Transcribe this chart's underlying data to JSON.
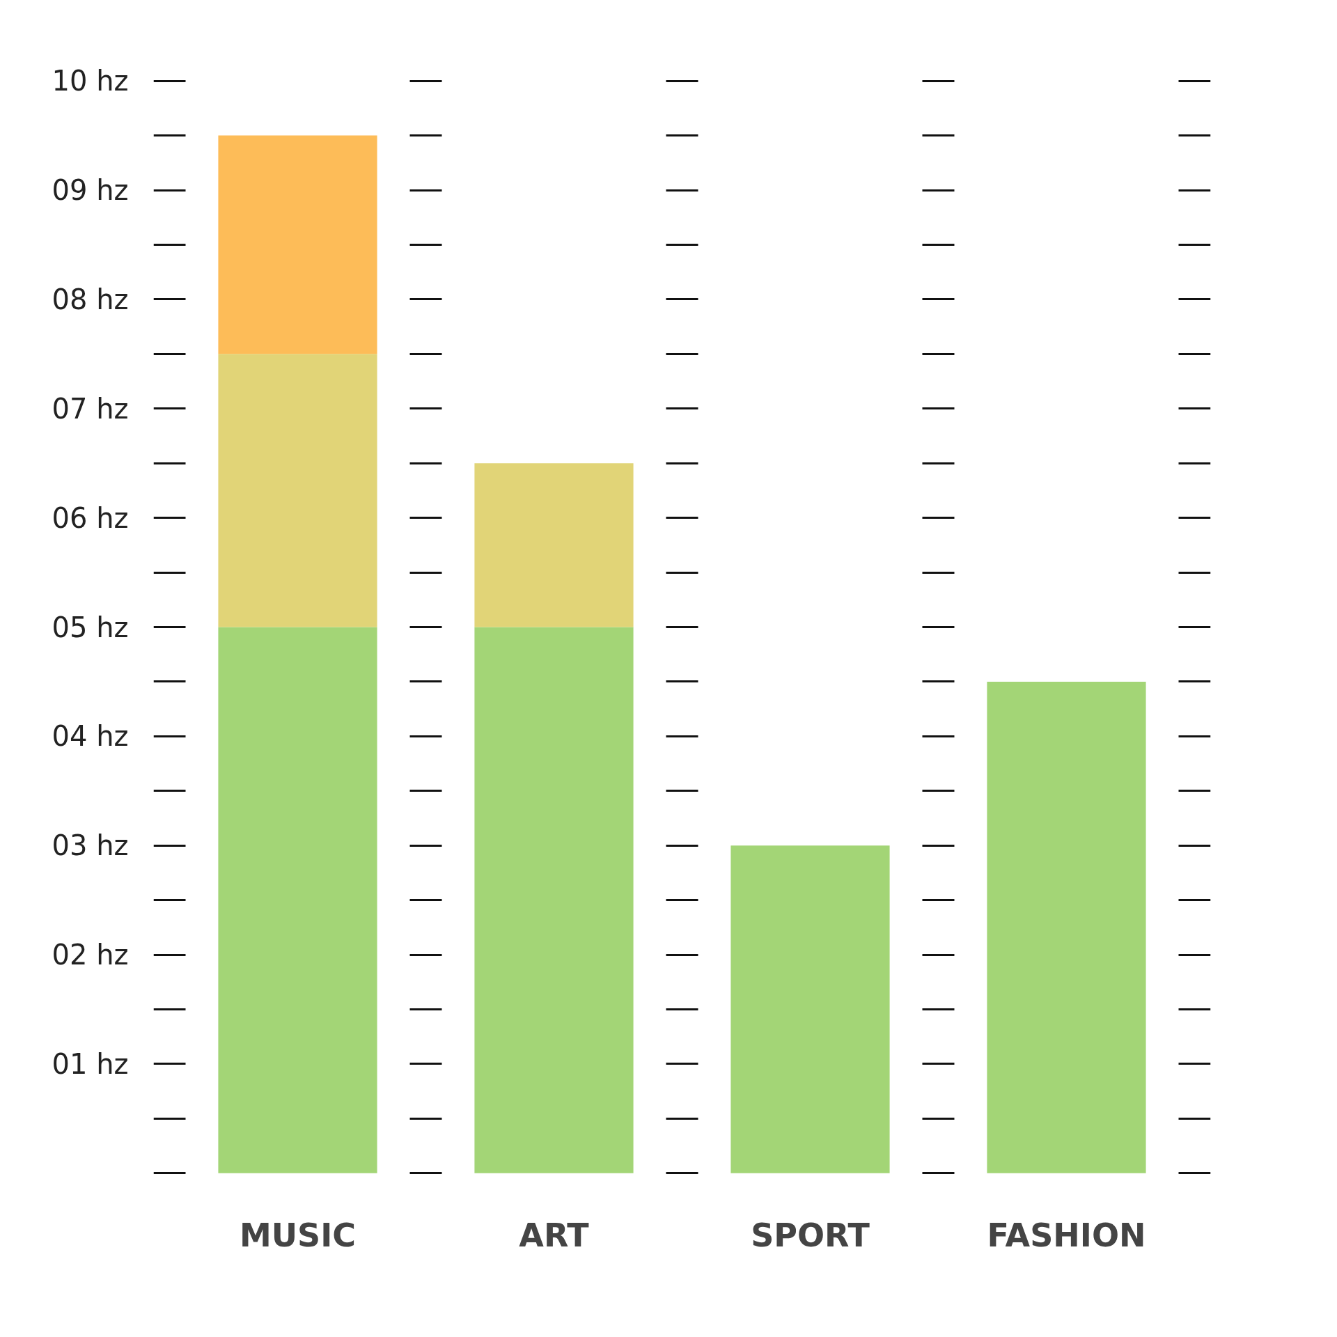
{
  "chart_data": {
    "type": "bar",
    "stacked": true,
    "categories": [
      "MUSIC",
      "ART",
      "SPORT",
      "FASHION"
    ],
    "series": [
      {
        "color": "#a3d576",
        "values": [
          5,
          5,
          3,
          4.5
        ]
      },
      {
        "color": "#e1d477",
        "values": [
          2.5,
          1.5,
          0,
          0
        ]
      },
      {
        "color": "#fdbc58",
        "values": [
          2,
          0,
          0,
          0
        ]
      }
    ],
    "ylim": [
      0,
      10
    ],
    "yticks": [
      {
        "value": 0,
        "label": null
      },
      {
        "value": 0.5,
        "label": null
      },
      {
        "value": 1,
        "label": "01 hz"
      },
      {
        "value": 1.5,
        "label": null
      },
      {
        "value": 2,
        "label": "02 hz"
      },
      {
        "value": 2.5,
        "label": null
      },
      {
        "value": 3,
        "label": "03 hz"
      },
      {
        "value": 3.5,
        "label": null
      },
      {
        "value": 4,
        "label": "04 hz"
      },
      {
        "value": 4.5,
        "label": null
      },
      {
        "value": 5,
        "label": "05 hz"
      },
      {
        "value": 5.5,
        "label": null
      },
      {
        "value": 6,
        "label": "06 hz"
      },
      {
        "value": 6.5,
        "label": null
      },
      {
        "value": 7,
        "label": "07 hz"
      },
      {
        "value": 7.5,
        "label": null
      },
      {
        "value": 8,
        "label": "08 hz"
      },
      {
        "value": 8.5,
        "label": null
      },
      {
        "value": 9,
        "label": "09 hz"
      },
      {
        "value": 9.5,
        "label": null
      },
      {
        "value": 10,
        "label": "10 hz"
      }
    ],
    "grid": "y"
  }
}
